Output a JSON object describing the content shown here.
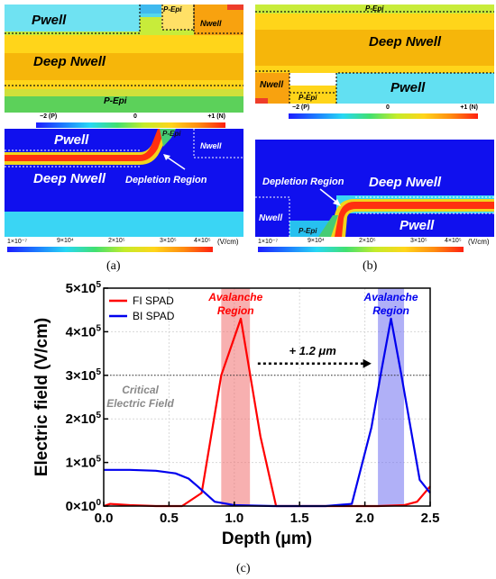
{
  "figure_labels": {
    "a": "(a)",
    "b": "(b)",
    "c": "(c)"
  },
  "doping_scale": {
    "min": "−2 (P)",
    "mid": "0",
    "max": "+1 (N)"
  },
  "field_scale": {
    "ticks": [
      "1×10⁻⁷",
      "9×10⁴",
      "2×10⁵",
      "3×10⁵",
      "4×10⁵"
    ],
    "unit": "(V/cm)"
  },
  "panel_a_top": {
    "pwell": "Pwell",
    "pepi_top": "P-Epi",
    "nwell": "Nwell",
    "deep_nwell": "Deep Nwell",
    "pepi_bottom": "P-Epi"
  },
  "panel_a_bottom": {
    "pwell": "Pwell",
    "pepi": "P-Epi",
    "nwell": "Nwell",
    "deep_nwell": "Deep Nwell",
    "depletion": "Depletion Region"
  },
  "panel_b_top": {
    "pepi_top": "P-Epi",
    "deep_nwell": "Deep Nwell",
    "nwell": "Nwell",
    "pwell": "Pwell",
    "pepi_bottom": "P-Epi"
  },
  "panel_b_bottom": {
    "depletion": "Depletion Region",
    "deep_nwell": "Deep Nwell",
    "nwell": "Nwell",
    "pepi": "P-Epi",
    "pwell": "Pwell"
  },
  "chart_data": {
    "type": "line",
    "xlabel": "Depth (μm)",
    "ylabel": "Electric field (V/cm)",
    "xlim": [
      0,
      2.5
    ],
    "ylim": [
      0,
      500000
    ],
    "x_ticks": [
      "0.0",
      "0.5",
      "1.0",
      "1.5",
      "2.0",
      "2.5"
    ],
    "y_ticks": [
      {
        "value": 0,
        "mantissa": "0×10",
        "exp": "0"
      },
      {
        "value": 100000,
        "mantissa": "1×10",
        "exp": "5"
      },
      {
        "value": 200000,
        "mantissa": "2×10",
        "exp": "5"
      },
      {
        "value": 300000,
        "mantissa": "3×10",
        "exp": "5"
      },
      {
        "value": 400000,
        "mantissa": "4×10",
        "exp": "5"
      },
      {
        "value": 500000,
        "mantissa": "5×10",
        "exp": "5"
      }
    ],
    "grid": true,
    "series": [
      {
        "name": "FI SPAD",
        "color": "#ff0000",
        "x": [
          0.0,
          0.05,
          0.2,
          0.4,
          0.6,
          0.75,
          0.9,
          1.05,
          1.2,
          1.32,
          1.5,
          1.9,
          2.1,
          2.3,
          2.4,
          2.5
        ],
        "y": [
          0,
          5000,
          2000,
          0,
          0,
          30000,
          300000,
          430000,
          160000,
          0,
          0,
          0,
          0,
          2000,
          10000,
          45000
        ]
      },
      {
        "name": "BI SPAD",
        "color": "#0000ee",
        "x": [
          0.0,
          0.2,
          0.4,
          0.55,
          0.65,
          0.72,
          0.85,
          1.0,
          1.3,
          1.7,
          1.9,
          2.05,
          2.12,
          2.2,
          2.28,
          2.35,
          2.42,
          2.5
        ],
        "y": [
          83000,
          83000,
          81000,
          75000,
          63000,
          45000,
          10000,
          2000,
          0,
          0,
          5000,
          180000,
          300000,
          430000,
          300000,
          180000,
          60000,
          30000
        ]
      }
    ],
    "critical_level": 300000,
    "critical_label": [
      "Critical",
      "Electric Field"
    ],
    "regions": [
      {
        "x0": 0.9,
        "x1": 1.12,
        "color": "#f07070",
        "label": [
          "Avalanche",
          "Region"
        ],
        "label_color": "#ff0000"
      },
      {
        "x0": 2.1,
        "x1": 2.3,
        "color": "#7070f0",
        "label": [
          "Avalanche",
          "Region"
        ],
        "label_color": "#0000ee"
      }
    ],
    "shift_annotation": "+ 1.2 μm",
    "legend_position": "top-left"
  }
}
